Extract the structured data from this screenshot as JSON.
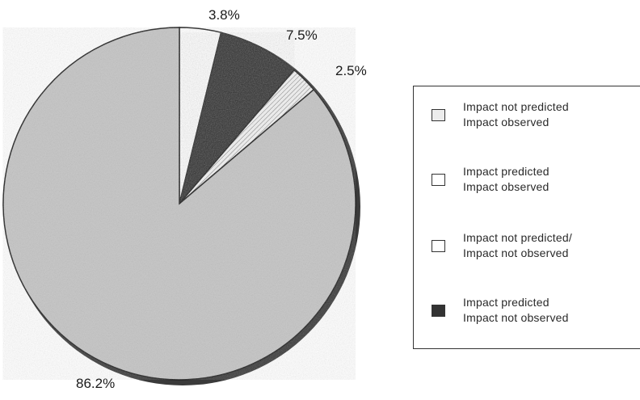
{
  "chart_data": {
    "type": "pie",
    "slices": [
      {
        "label": "3.8%",
        "value": 3.8,
        "legend_index": 1,
        "fill": "#ffffff"
      },
      {
        "label": "7.5%",
        "value": 7.5,
        "legend_index": 3,
        "fill": "#2b2b2b"
      },
      {
        "label": "2.5%",
        "value": 2.5,
        "legend_index": 0,
        "fill": "#e6e6e6"
      },
      {
        "label": "86.2%",
        "value": 86.2,
        "legend_index": 2,
        "fill": "#c4c4c4"
      }
    ],
    "legend_placement": "right",
    "legend": [
      {
        "line1": "Impact not predicted",
        "line2": "Impact observed",
        "swatch": "#ececec"
      },
      {
        "line1": "Impact predicted",
        "line2": "Impact observed",
        "swatch": "#ffffff"
      },
      {
        "line1": "Impact not predicted/",
        "line2": "Impact not observed",
        "swatch": "#ffffff"
      },
      {
        "line1": "Impact predicted",
        "line2": "Impact not observed",
        "swatch": "#333333"
      }
    ]
  }
}
